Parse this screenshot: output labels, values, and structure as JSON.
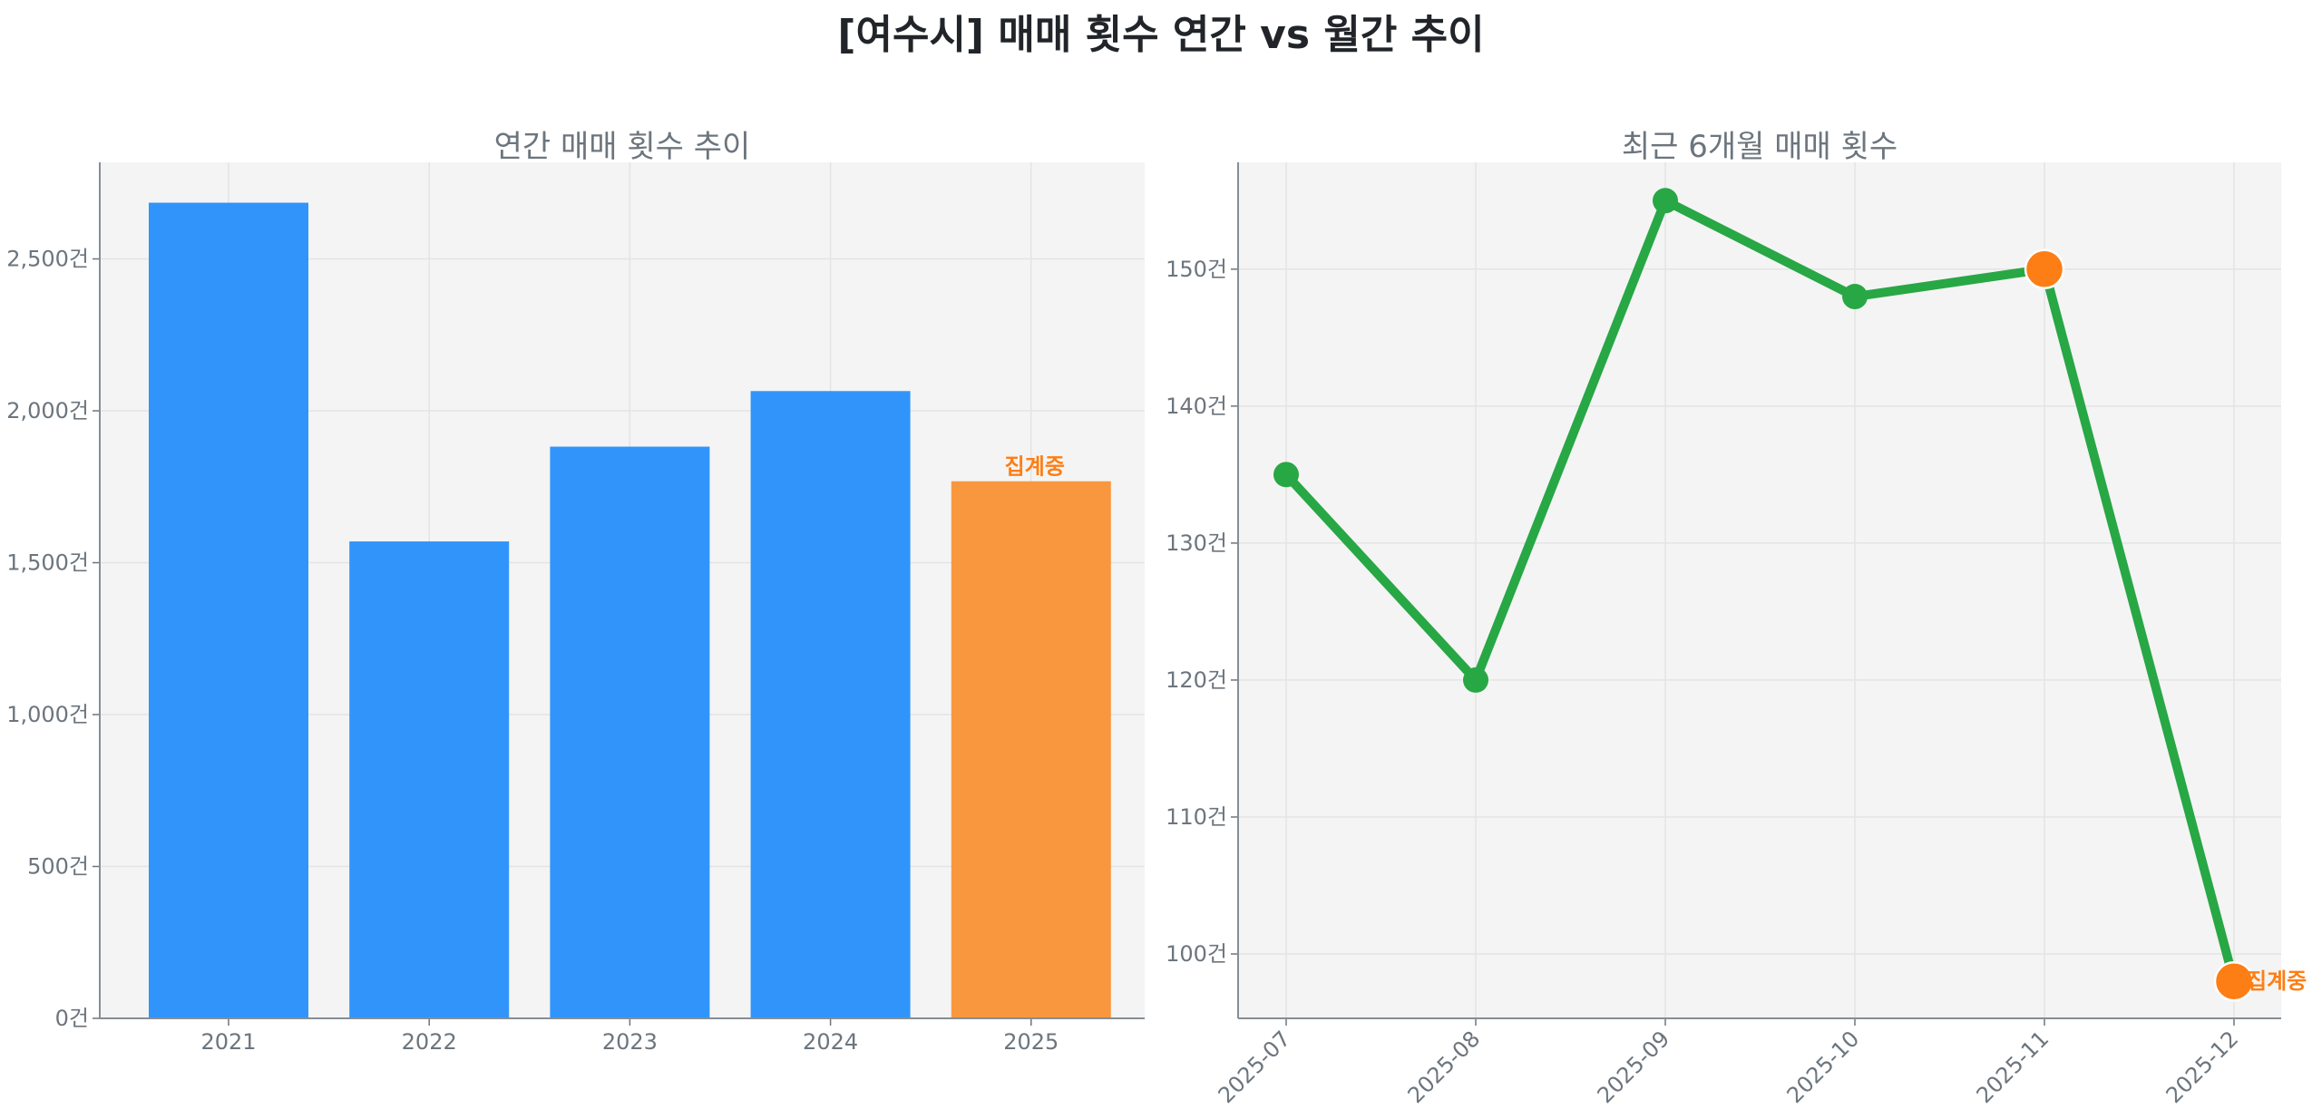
{
  "figure": {
    "title": "[여수시] 매매 횟수 연간 vs 월간 추이"
  },
  "chart_data": [
    {
      "type": "bar",
      "title": "연간 매매 횟수 추이",
      "xlabel": "",
      "ylabel": "",
      "categories": [
        "2021",
        "2022",
        "2023",
        "2024",
        "2025"
      ],
      "values": [
        2685,
        1570,
        1882,
        2065,
        1768
      ],
      "bar_colors": [
        "#3194fb",
        "#3194fb",
        "#3194fb",
        "#3194fb",
        "#f9973f"
      ],
      "annotations": [
        {
          "category": "2025",
          "text": "집계중",
          "color": "#fd7e14"
        }
      ],
      "ylim": [
        0,
        2818
      ],
      "yticks": [
        0,
        500,
        1000,
        1500,
        2000,
        2500
      ],
      "ytick_labels": [
        "0건",
        "500건",
        "1,000건",
        "1,500건",
        "2,000건",
        "2,500건"
      ],
      "grid": true
    },
    {
      "type": "line",
      "title": "최근 6개월 매매 횟수",
      "xlabel": "",
      "ylabel": "",
      "x": [
        "2025-07",
        "2025-08",
        "2025-09",
        "2025-10",
        "2025-11",
        "2025-12"
      ],
      "series": [
        {
          "name": "매매 횟수",
          "values": [
            135,
            120,
            155,
            148,
            150,
            98
          ],
          "color": "#28a745"
        }
      ],
      "highlight_points": [
        {
          "x": "2025-11",
          "color": "#fd7e14"
        },
        {
          "x": "2025-12",
          "color": "#fd7e14",
          "label": "집계중"
        }
      ],
      "ylim": [
        95.3,
        157.8
      ],
      "yticks": [
        100,
        110,
        120,
        130,
        140,
        150
      ],
      "ytick_labels": [
        "100건",
        "110건",
        "120건",
        "130건",
        "140건",
        "150건"
      ],
      "xtick_rotation": 45,
      "grid": true
    }
  ]
}
